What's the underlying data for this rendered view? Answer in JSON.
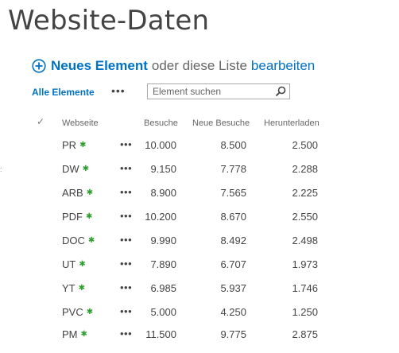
{
  "page": {
    "title": "Website-Daten"
  },
  "commandbar": {
    "new_item_label": "Neues Element",
    "or_text": "oder diese Liste",
    "edit_label": "bearbeiten"
  },
  "viewbar": {
    "current_view": "Alle Elemente",
    "more_label": "•••",
    "search_placeholder": "Element suchen"
  },
  "table": {
    "columns": [
      "Webseite",
      "Besuche",
      "Neue Besuche",
      "Herunterladen"
    ],
    "row_menu_label": "•••",
    "new_marker": "✱",
    "rows": [
      {
        "name": "PR",
        "visits": "10.000",
        "new_visits": "8.500",
        "downloads": "2.500"
      },
      {
        "name": "DW",
        "visits": "9.150",
        "new_visits": "7.778",
        "downloads": "2.288"
      },
      {
        "name": "ARB",
        "visits": "8.900",
        "new_visits": "7.565",
        "downloads": "2.225"
      },
      {
        "name": "PDF",
        "visits": "10.200",
        "new_visits": "8.670",
        "downloads": "2.550"
      },
      {
        "name": "DOC",
        "visits": "9.990",
        "new_visits": "8.492",
        "downloads": "2.498"
      },
      {
        "name": "UT",
        "visits": "7.890",
        "new_visits": "6.707",
        "downloads": "1.973"
      },
      {
        "name": "YT",
        "visits": "6.985",
        "new_visits": "5.937",
        "downloads": "1.746"
      },
      {
        "name": "PVC",
        "visits": "5.000",
        "new_visits": "4.250",
        "downloads": "1.250"
      },
      {
        "name": "PM",
        "visits": "11.500",
        "new_visits": "9.775",
        "downloads": "2.875"
      }
    ]
  },
  "colors": {
    "accent": "#0072c6",
    "new_marker": "#2e9f2e",
    "text": "#444444"
  },
  "icons": {
    "add": "plus-circle-icon",
    "search": "search-icon",
    "select_all": "check-icon",
    "new": "new-item-star-icon"
  }
}
